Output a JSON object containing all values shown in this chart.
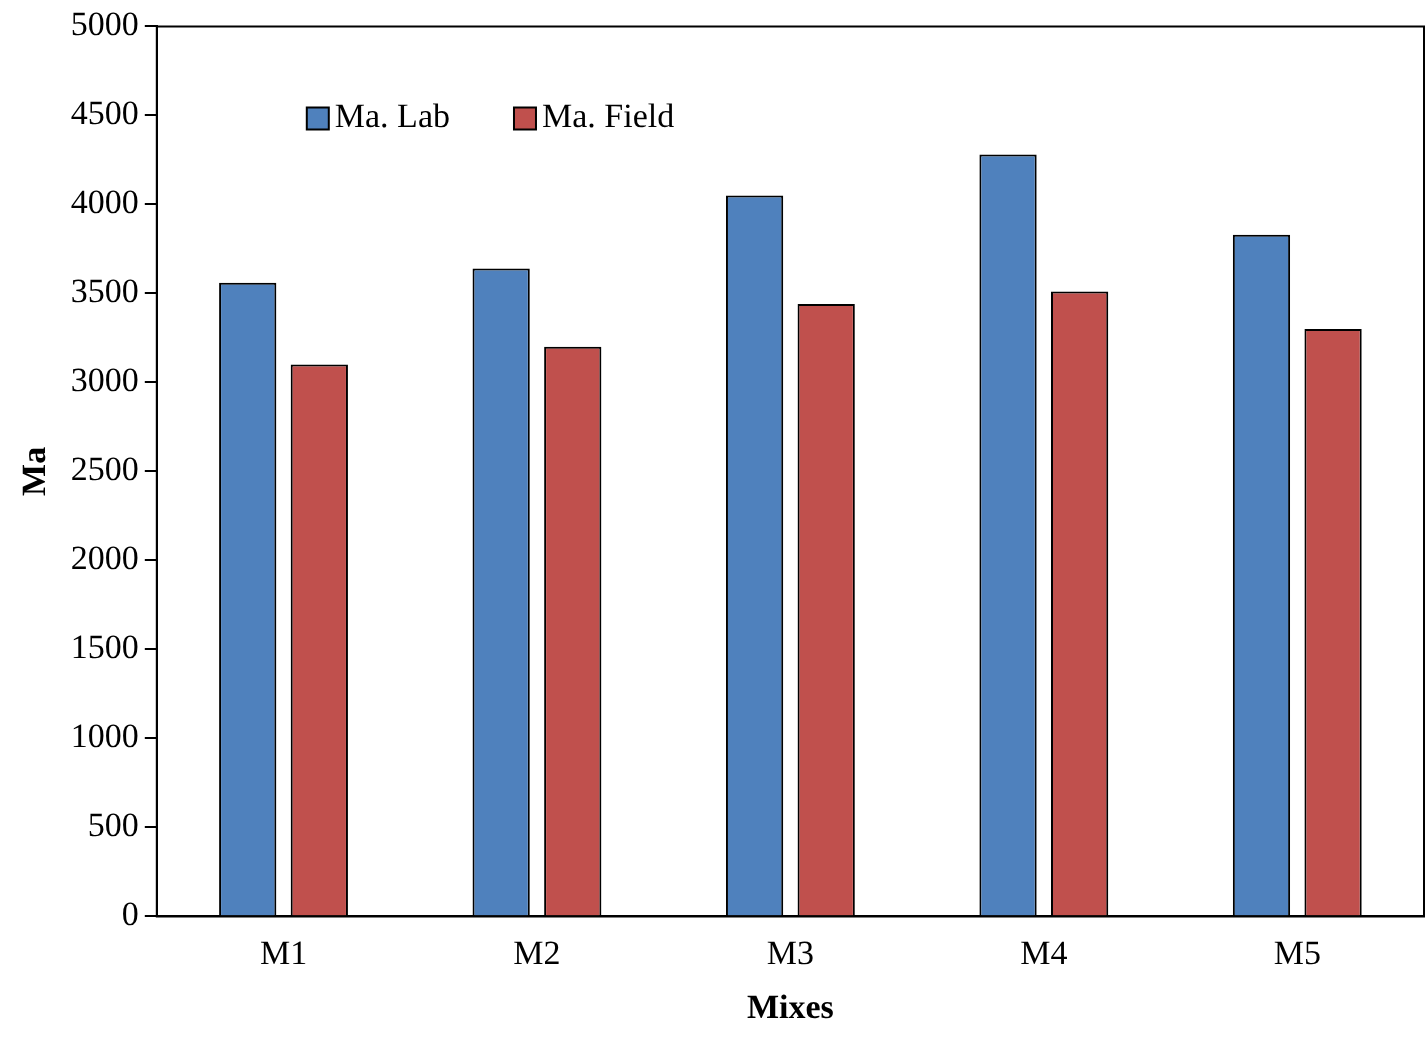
{
  "chart_data": {
    "type": "bar",
    "xlabel": "Mixes",
    "ylabel": "Ma",
    "categories": [
      "M1",
      "M2",
      "M3",
      "M4",
      "M5"
    ],
    "series": [
      {
        "name": "Ma. Lab",
        "color": "#4f81bd",
        "values": [
          3560,
          3640,
          4050,
          4280,
          3830
        ]
      },
      {
        "name": "Ma. Field",
        "color": "#c0504d",
        "values": [
          3100,
          3200,
          3440,
          3510,
          3300
        ]
      }
    ],
    "ylim": [
      0,
      5000
    ],
    "yticks": [
      0,
      500,
      1000,
      1500,
      2000,
      2500,
      3000,
      3500,
      4000,
      4500,
      5000
    ],
    "grid": false,
    "legend": "top left"
  }
}
